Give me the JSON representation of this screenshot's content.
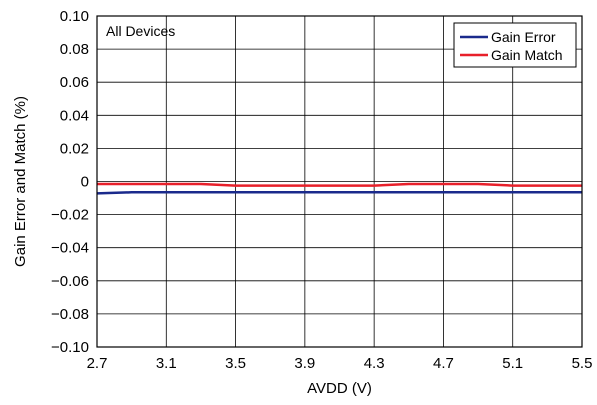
{
  "chart_data": {
    "type": "line",
    "title": "",
    "xlabel": "AVDD (V)",
    "ylabel": "Gain Error and Match (%)",
    "annotation": "All Devices",
    "xlim": [
      2.7,
      5.5
    ],
    "ylim": [
      -0.1,
      0.1
    ],
    "x_ticks": [
      "2.7",
      "3.1",
      "3.5",
      "3.9",
      "4.3",
      "4.7",
      "5.1",
      "5.5"
    ],
    "y_ticks": [
      "0.10",
      "0.08",
      "0.06",
      "0.04",
      "0.02",
      "0",
      "−0.02",
      "−0.04",
      "−0.06",
      "−0.08",
      "−0.10"
    ],
    "grid": true,
    "legend_position": "top-right",
    "series": [
      {
        "name": "Gain Error",
        "color": "#1a2a8c",
        "x": [
          2.7,
          2.9,
          3.1,
          3.3,
          3.5,
          3.7,
          3.9,
          4.1,
          4.3,
          4.5,
          4.7,
          4.9,
          5.1,
          5.3,
          5.5
        ],
        "y": [
          -0.0072,
          -0.0065,
          -0.0065,
          -0.0065,
          -0.0065,
          -0.0065,
          -0.0065,
          -0.0065,
          -0.0065,
          -0.0065,
          -0.0065,
          -0.0065,
          -0.0065,
          -0.0065,
          -0.0065
        ]
      },
      {
        "name": "Gain Match",
        "color": "#e8202a",
        "x": [
          2.7,
          2.9,
          3.1,
          3.3,
          3.5,
          3.7,
          3.9,
          4.1,
          4.3,
          4.5,
          4.7,
          4.9,
          5.1,
          5.3,
          5.5
        ],
        "y": [
          -0.0015,
          -0.0015,
          -0.0015,
          -0.0015,
          -0.0025,
          -0.0025,
          -0.0025,
          -0.0025,
          -0.0025,
          -0.0015,
          -0.0015,
          -0.0015,
          -0.0025,
          -0.0025,
          -0.0025
        ]
      }
    ]
  }
}
